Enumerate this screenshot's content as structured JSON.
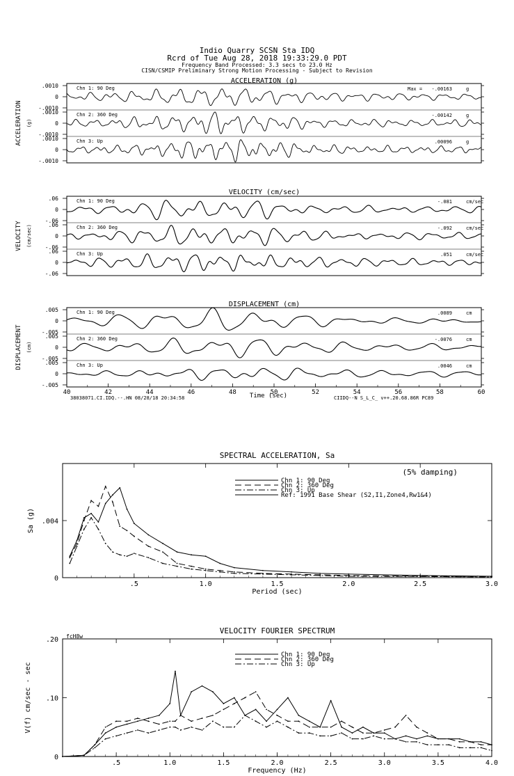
{
  "header": {
    "station_line": "Indio Quarry    SCSN Sta IDQ",
    "record_line": "Rcrd of Tue Aug 28, 2018 19:33:29.0 PDT",
    "band_line": "Frequency Band Processed: 3.3 secs to 23.0 Hz",
    "processing_line": "CISN/CSMIP Preliminary Strong Motion Processing - Subject to Revision"
  },
  "time_series": {
    "x_label": "Time (sec)",
    "x_ticks": [
      "40",
      "42",
      "44",
      "46",
      "48",
      "50",
      "52",
      "54",
      "56",
      "58",
      "60"
    ],
    "xlim": [
      40,
      60
    ],
    "footer_left": "38038071.CI.IDQ.--.HN 08/28/18 20:34:58",
    "footer_right": "CIIDQ--N  S_L_C_  v++.20.68.86R PC89",
    "max_label": "Max =",
    "panels": [
      {
        "title": "ACCELERATION (g)",
        "side_label": "ACCELERATION",
        "unit_label": "(g)",
        "unit": "g",
        "ticks": [
          ".0010",
          "0",
          "-.0010"
        ],
        "channels": [
          {
            "name": "Chn 1: 90 Deg",
            "peak": "-.00163"
          },
          {
            "name": "Chn 2: 360 Deg",
            "peak": "-.00142"
          },
          {
            "name": "Chn 3: Up",
            "peak": ".00096"
          }
        ]
      },
      {
        "title": "VELOCITY (cm/sec)",
        "side_label": "VELOCITY",
        "unit_label": "(cm/sec)",
        "unit": "cm/sec",
        "ticks": [
          ".06",
          "0",
          "-.06"
        ],
        "channels": [
          {
            "name": "Chn 1: 90 Deg",
            "peak": "-.081"
          },
          {
            "name": "Chn 2: 360 Deg",
            "peak": "-.092"
          },
          {
            "name": "Chn 3: Up",
            "peak": ".051"
          }
        ]
      },
      {
        "title": "DISPLACEMENT (cm)",
        "side_label": "DISPLACEMENT",
        "unit_label": "(cm)",
        "unit": "cm",
        "ticks": [
          ".005",
          "0",
          "-.005"
        ],
        "channels": [
          {
            "name": "Chn 1: 90 Deg",
            "peak": ".0089"
          },
          {
            "name": "Chn 2: 360 Deg",
            "peak": "-.0076"
          },
          {
            "name": "Chn 3: Up",
            "peak": ".0046"
          }
        ]
      }
    ]
  },
  "chart_data": [
    {
      "type": "line",
      "title": "SPECTRAL ACCELERATION, Sa",
      "note": "(5% damping)",
      "xlabel": "Period (sec)",
      "ylabel": "Sa (g)",
      "xlim": [
        0,
        3.0
      ],
      "ylim": [
        0,
        0.008
      ],
      "x_ticks": [
        ".5",
        "1.0",
        "1.5",
        "2.0",
        "2.5",
        "3.0"
      ],
      "y_ticks": [
        {
          "value": 0,
          "label": "0"
        },
        {
          "value": 0.004,
          "label": ".004"
        }
      ],
      "legend_position": "top-center",
      "x": [
        0.05,
        0.1,
        0.15,
        0.2,
        0.25,
        0.3,
        0.35,
        0.4,
        0.45,
        0.5,
        0.6,
        0.7,
        0.8,
        0.9,
        1.0,
        1.1,
        1.2,
        1.4,
        1.6,
        1.8,
        2.0,
        2.5,
        3.0
      ],
      "series": [
        {
          "name": "Chn 1: 90 Deg",
          "dash": "",
          "values": [
            0.0015,
            0.0026,
            0.0042,
            0.0045,
            0.0039,
            0.0052,
            0.0058,
            0.0063,
            0.0048,
            0.0038,
            0.003,
            0.0024,
            0.0018,
            0.0016,
            0.0015,
            0.001,
            0.0007,
            0.0005,
            0.0004,
            0.0003,
            0.00025,
            0.00015,
            0.0001
          ]
        },
        {
          "name": "Chn 2: 360 Deg",
          "dash": "9,5",
          "values": [
            0.0014,
            0.0024,
            0.004,
            0.0054,
            0.005,
            0.0064,
            0.0053,
            0.0036,
            0.0033,
            0.0029,
            0.0022,
            0.0018,
            0.001,
            0.0008,
            0.0006,
            0.0005,
            0.0004,
            0.0003,
            0.00025,
            0.0002,
            0.00015,
            0.0001,
            8e-05
          ]
        },
        {
          "name": "Chn 3: Up",
          "dash": "9,3,2,3",
          "values": [
            0.001,
            0.0022,
            0.0034,
            0.0042,
            0.0034,
            0.0024,
            0.0018,
            0.0016,
            0.0015,
            0.0017,
            0.0014,
            0.001,
            0.0008,
            0.0006,
            0.0005,
            0.0004,
            0.0003,
            0.00025,
            0.0002,
            0.00015,
            0.0001,
            8e-05,
            5e-05
          ]
        }
      ],
      "extra_legend": [
        {
          "name": "Ref: 1991 Base Shear (S2,I1,Zone4,Rw1&4)",
          "dash": ""
        }
      ]
    },
    {
      "type": "line",
      "title": "VELOCITY FOURIER SPECTRUM",
      "corner_label": "fcH8w",
      "xlabel": "Frequency (Hz)",
      "ylabel": "V(f)   cm/sec - sec",
      "xlim": [
        0,
        4.0
      ],
      "ylim": [
        0,
        0.2
      ],
      "x_ticks": [
        ".5",
        "1.0",
        "1.5",
        "2.0",
        "2.5",
        "3.0",
        "3.5",
        "4.0"
      ],
      "y_ticks": [
        {
          "value": 0,
          "label": "0"
        },
        {
          "value": 0.1,
          "label": ".10"
        },
        {
          "value": 0.2,
          "label": ".20"
        }
      ],
      "legend_position": "top-center",
      "x": [
        0.0,
        0.2,
        0.3,
        0.4,
        0.5,
        0.6,
        0.7,
        0.8,
        0.9,
        1.0,
        1.05,
        1.1,
        1.2,
        1.3,
        1.4,
        1.5,
        1.6,
        1.7,
        1.8,
        1.9,
        2.0,
        2.1,
        2.2,
        2.3,
        2.4,
        2.5,
        2.6,
        2.7,
        2.8,
        2.9,
        3.0,
        3.1,
        3.2,
        3.3,
        3.4,
        3.5,
        3.6,
        3.7,
        3.8,
        3.9,
        4.0
      ],
      "series": [
        {
          "name": "Chn 1: 90 Deg",
          "dash": "",
          "values": [
            0.0,
            0.002,
            0.02,
            0.04,
            0.05,
            0.055,
            0.06,
            0.065,
            0.07,
            0.09,
            0.145,
            0.07,
            0.11,
            0.12,
            0.11,
            0.09,
            0.1,
            0.07,
            0.08,
            0.06,
            0.08,
            0.1,
            0.07,
            0.06,
            0.05,
            0.095,
            0.05,
            0.04,
            0.05,
            0.04,
            0.04,
            0.03,
            0.035,
            0.03,
            0.035,
            0.03,
            0.03,
            0.03,
            0.025,
            0.025,
            0.02
          ]
        },
        {
          "name": "Chn 2: 360 Deg",
          "dash": "9,5",
          "values": [
            0.0,
            0.002,
            0.02,
            0.05,
            0.06,
            0.06,
            0.065,
            0.06,
            0.055,
            0.06,
            0.06,
            0.07,
            0.06,
            0.065,
            0.07,
            0.08,
            0.09,
            0.1,
            0.11,
            0.08,
            0.07,
            0.06,
            0.06,
            0.05,
            0.05,
            0.05,
            0.06,
            0.05,
            0.04,
            0.04,
            0.045,
            0.05,
            0.07,
            0.05,
            0.04,
            0.03,
            0.03,
            0.025,
            0.025,
            0.02,
            0.02
          ]
        },
        {
          "name": "Chn 3: Up",
          "dash": "9,3,2,3",
          "values": [
            0.0,
            0.002,
            0.015,
            0.03,
            0.035,
            0.04,
            0.045,
            0.04,
            0.045,
            0.05,
            0.05,
            0.045,
            0.05,
            0.045,
            0.06,
            0.05,
            0.05,
            0.07,
            0.06,
            0.05,
            0.06,
            0.05,
            0.04,
            0.04,
            0.035,
            0.035,
            0.04,
            0.03,
            0.03,
            0.035,
            0.03,
            0.03,
            0.025,
            0.025,
            0.02,
            0.02,
            0.02,
            0.015,
            0.015,
            0.015,
            0.01
          ]
        }
      ]
    }
  ]
}
